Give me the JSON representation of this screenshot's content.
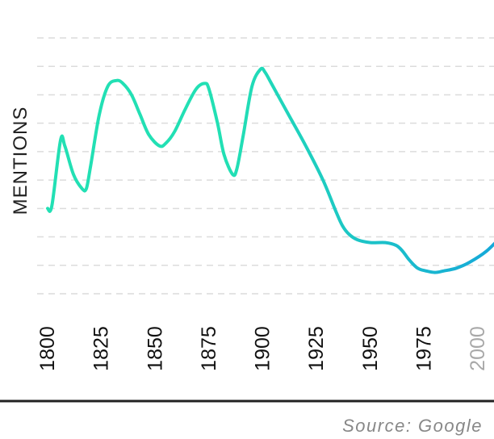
{
  "chart_data": {
    "type": "line",
    "ylabel": "MENTIONS",
    "xlabel": "",
    "x_ticks": [
      {
        "label": "1800",
        "value": 1800
      },
      {
        "label": "1825",
        "value": 1825
      },
      {
        "label": "1850",
        "value": 1850
      },
      {
        "label": "1875",
        "value": 1875
      },
      {
        "label": "1900",
        "value": 1900
      },
      {
        "label": "1925",
        "value": 1925
      },
      {
        "label": "1950",
        "value": 1950
      },
      {
        "label": "1975",
        "value": 1975
      },
      {
        "label": "2000",
        "value": 2000,
        "muted": true
      }
    ],
    "xlim": [
      1800,
      2012
    ],
    "ylim": [
      0,
      9
    ],
    "grid": true,
    "gridlines": 10,
    "y_tick_labels_shown": false,
    "series": [
      {
        "x": [
          1800,
          1802,
          1806,
          1808,
          1812,
          1816,
          1818,
          1820,
          1824,
          1828,
          1832,
          1835,
          1839,
          1843,
          1847,
          1852,
          1855,
          1859,
          1864,
          1869,
          1873,
          1875,
          1879,
          1882,
          1886,
          1888,
          1891,
          1895,
          1899,
          1901,
          1904,
          1912,
          1920,
          1928,
          1934,
          1937,
          1940,
          1944,
          1950,
          1957,
          1962,
          1965,
          1968,
          1972,
          1976,
          1980,
          1984,
          1990,
          1996,
          2004,
          2012
        ],
        "values": [
          3.0,
          3.1,
          5.4,
          5.2,
          4.2,
          3.7,
          3.7,
          4.5,
          6.3,
          7.3,
          7.5,
          7.4,
          7.0,
          6.3,
          5.6,
          5.2,
          5.3,
          5.7,
          6.5,
          7.2,
          7.4,
          7.2,
          6.0,
          4.9,
          4.2,
          4.4,
          5.6,
          7.3,
          7.9,
          7.8,
          7.4,
          6.3,
          5.2,
          4.0,
          2.9,
          2.4,
          2.1,
          1.9,
          1.8,
          1.8,
          1.7,
          1.5,
          1.2,
          0.9,
          0.8,
          0.75,
          0.8,
          0.9,
          1.1,
          1.5,
          2.1
        ]
      }
    ]
  },
  "source": "Source: Google",
  "colors": {
    "line_start": "#22e0b4",
    "line_end": "#16a9d9",
    "grid": "#dcdcdc",
    "axis": "#222222",
    "tick_label": "#111111",
    "tick_label_muted": "#a8a8a8",
    "source_text": "#888888"
  }
}
